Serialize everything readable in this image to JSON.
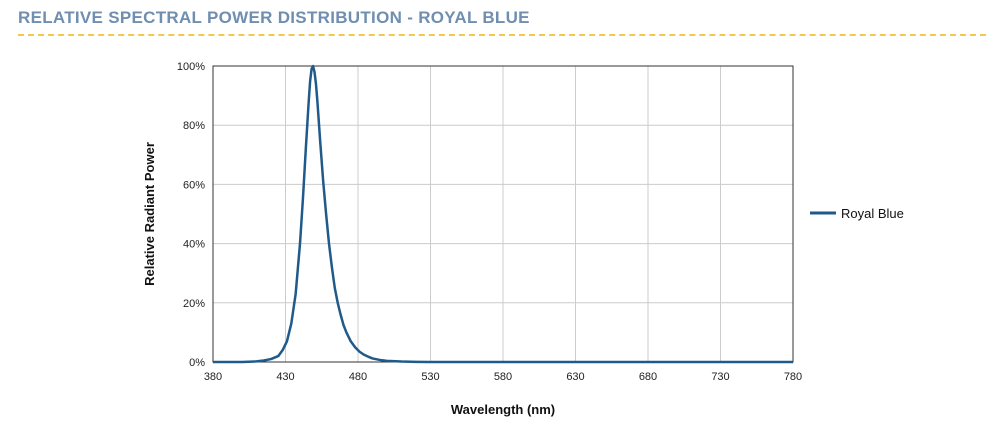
{
  "header": {
    "title": "RELATIVE SPECTRAL POWER DISTRIBUTION - ROYAL BLUE"
  },
  "colors": {
    "title": "#6f8eb0",
    "series": "#1f5a8a",
    "grid": "#cccccc",
    "rule": "#f2c94c"
  },
  "chart_data": {
    "type": "line",
    "xlabel": "Wavelength (nm)",
    "ylabel": "Relative Radiant Power",
    "xlim": [
      380,
      780
    ],
    "ylim": [
      0,
      100
    ],
    "xticks": [
      "380",
      "430",
      "480",
      "530",
      "580",
      "630",
      "680",
      "730",
      "780"
    ],
    "yticks": [
      "0%",
      "20%",
      "40%",
      "60%",
      "80%",
      "100%"
    ],
    "grid": true,
    "legend_position": "right",
    "series": [
      {
        "name": "Royal Blue",
        "x": [
          380,
          400,
          410,
          415,
          420,
          425,
          428,
          431,
          434,
          437,
          440,
          442,
          444,
          446,
          447,
          448,
          449,
          450,
          451,
          452,
          454,
          456,
          458,
          460,
          462,
          464,
          466,
          468,
          470,
          472,
          475,
          478,
          481,
          484,
          487,
          490,
          495,
          500,
          510,
          520,
          530,
          560,
          600,
          700,
          780
        ],
        "y": [
          0,
          0,
          0.2,
          0.5,
          1,
          2,
          4,
          7,
          13,
          23,
          40,
          55,
          72,
          88,
          95,
          99,
          100,
          98,
          94,
          88,
          74,
          61,
          50,
          40,
          32,
          25,
          20,
          16,
          12.5,
          10,
          7,
          5,
          3.5,
          2.5,
          1.8,
          1.2,
          0.7,
          0.4,
          0.15,
          0.05,
          0.02,
          0,
          0,
          0,
          0
        ]
      }
    ]
  }
}
